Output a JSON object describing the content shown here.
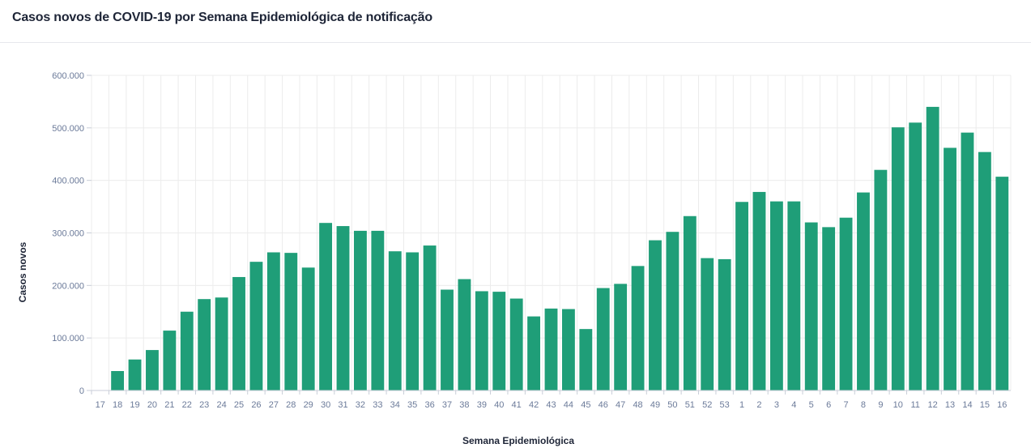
{
  "title": "Casos novos de COVID-19 por Semana Epidemiológica de notificação",
  "colors": {
    "bar": "#1f9e78",
    "grid": "#ececec",
    "axis": "#c9ced8",
    "tick_text": "#6b7a99",
    "title_text": "#1e2537"
  },
  "chart_data": {
    "type": "bar",
    "title": "Casos novos de COVID-19 por Semana Epidemiológica de notificação",
    "xlabel": "Semana Epidemiológica",
    "ylabel": "Casos novos",
    "ylim": [
      0,
      600000
    ],
    "yticks": [
      0,
      100000,
      200000,
      300000,
      400000,
      500000,
      600000
    ],
    "ytick_labels": [
      "0",
      "100.000",
      "200.000",
      "300.000",
      "400.000",
      "500.000",
      "600.000"
    ],
    "grid": true,
    "categories": [
      "17",
      "18",
      "19",
      "20",
      "21",
      "22",
      "23",
      "24",
      "25",
      "26",
      "27",
      "28",
      "29",
      "30",
      "31",
      "32",
      "33",
      "34",
      "35",
      "36",
      "37",
      "38",
      "39",
      "40",
      "41",
      "42",
      "43",
      "44",
      "45",
      "46",
      "47",
      "48",
      "49",
      "50",
      "51",
      "52",
      "53",
      "1",
      "2",
      "3",
      "4",
      "5",
      "6",
      "7",
      "8",
      "9",
      "10",
      "11",
      "12",
      "13",
      "14",
      "15",
      "16"
    ],
    "values": [
      0,
      37000,
      59000,
      77000,
      114000,
      150000,
      174000,
      177000,
      216000,
      245000,
      263000,
      262000,
      234000,
      319000,
      313000,
      304000,
      304000,
      265000,
      263000,
      276000,
      192000,
      212000,
      189000,
      188000,
      175000,
      141000,
      156000,
      155000,
      117000,
      195000,
      203000,
      237000,
      286000,
      302000,
      332000,
      252000,
      250000,
      359000,
      378000,
      360000,
      360000,
      320000,
      311000,
      329000,
      377000,
      420000,
      501000,
      510000,
      540000,
      462000,
      491000,
      454000,
      407000
    ]
  }
}
